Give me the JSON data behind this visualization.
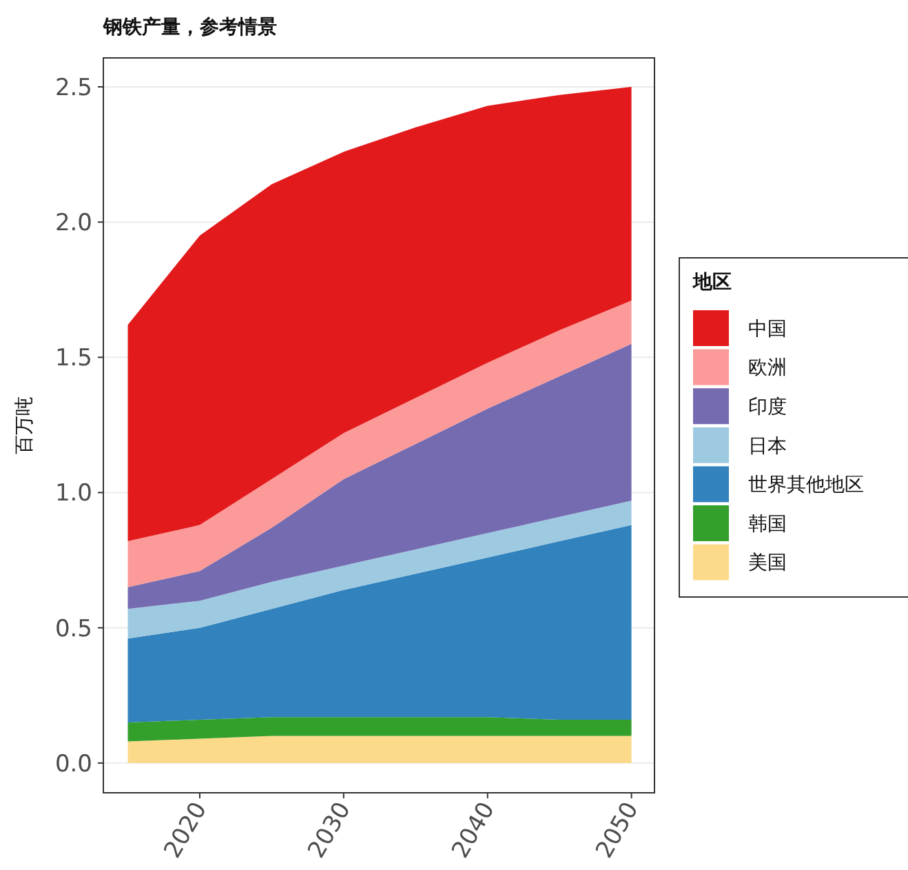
{
  "chart_data": {
    "type": "area",
    "stacked": true,
    "title": "钢铁产量，参考情景",
    "ylabel": "百万吨",
    "legend_title": "地区",
    "legend": "right",
    "grid": "y",
    "x": [
      2015,
      2020,
      2025,
      2030,
      2035,
      2040,
      2045,
      2050
    ],
    "xlim": [
      2013.3,
      2051.6
    ],
    "xticks": [
      2020,
      2030,
      2040,
      2050
    ],
    "ylim": [
      -0.11,
      2.607
    ],
    "yticks": [
      {
        "value": 0,
        "label": "0.0"
      },
      0.5,
      {
        "value": 1,
        "label": "1.0"
      },
      1.5,
      {
        "value": 2,
        "label": "2.0"
      },
      2.5
    ],
    "series": [
      {
        "name": "美国",
        "color": "#fdd98a",
        "values": [
          0.08,
          0.09,
          0.1,
          0.1,
          0.1,
          0.1,
          0.1,
          0.1
        ]
      },
      {
        "name": "韩国",
        "color": "#33a02c",
        "values": [
          0.07,
          0.07,
          0.07,
          0.07,
          0.07,
          0.07,
          0.06,
          0.06
        ]
      },
      {
        "name": "世界其他地区",
        "color": "#3182bd",
        "values": [
          0.31,
          0.34,
          0.4,
          0.47,
          0.53,
          0.59,
          0.66,
          0.72
        ]
      },
      {
        "name": "日本",
        "color": "#9ecae1",
        "values": [
          0.11,
          0.1,
          0.1,
          0.09,
          0.09,
          0.09,
          0.09,
          0.09
        ]
      },
      {
        "name": "印度",
        "color": "#756bb1",
        "values": [
          0.08,
          0.11,
          0.2,
          0.32,
          0.39,
          0.46,
          0.52,
          0.58
        ]
      },
      {
        "name": "欧洲",
        "color": "#fb9a99",
        "values": [
          0.17,
          0.17,
          0.18,
          0.17,
          0.17,
          0.17,
          0.17,
          0.16
        ]
      },
      {
        "name": "中国",
        "color": "#e31a1c",
        "values": [
          0.8,
          1.07,
          1.09,
          1.04,
          1.0,
          0.95,
          0.87,
          0.79
        ]
      }
    ]
  }
}
